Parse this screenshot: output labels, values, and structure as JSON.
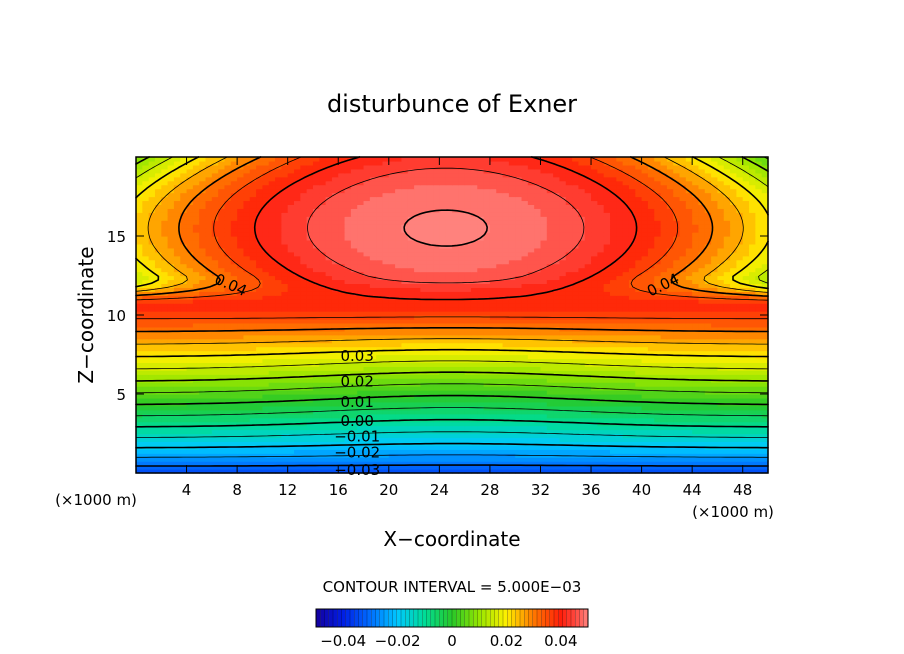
{
  "chart_data": {
    "type": "heatmap",
    "subtype": "filled-contour",
    "title": "disturbunce of Exner",
    "xlabel": "X−coordinate",
    "ylabel": "Z−coordinate",
    "xunit": "(×1000 m)",
    "yunit": "(×1000 m)",
    "xlim": [
      0,
      50
    ],
    "ylim": [
      0,
      20
    ],
    "xticks": [
      4,
      8,
      12,
      16,
      20,
      24,
      28,
      32,
      36,
      40,
      44,
      48
    ],
    "yticks": [
      5,
      10,
      15
    ],
    "grid": false,
    "contour_interval_text": "CONTOUR INTERVAL = 5.000E−03",
    "contour_labels": [
      {
        "text": "0.04",
        "x": 7.5,
        "y": 11.9,
        "rot": 24
      },
      {
        "text": "0.04",
        "x": 41.7,
        "y": 11.9,
        "rot": -26
      },
      {
        "text": "0.03",
        "x": 17.5,
        "y": 7.4,
        "rot": 0
      },
      {
        "text": "0.02",
        "x": 17.5,
        "y": 5.8,
        "rot": 0
      },
      {
        "text": "0.01",
        "x": 17.5,
        "y": 4.5,
        "rot": 0
      },
      {
        "text": "0.00",
        "x": 17.5,
        "y": 3.3,
        "rot": 0
      },
      {
        "text": "−0.01",
        "x": 17.5,
        "y": 2.3,
        "rot": 0
      },
      {
        "text": "−0.02",
        "x": 17.5,
        "y": 1.3,
        "rot": 0
      },
      {
        "text": "−0.03",
        "x": 17.5,
        "y": 0.2,
        "rot": 0
      }
    ],
    "colorbar": {
      "range": [
        -0.05,
        0.05
      ],
      "ticks": [
        -0.04,
        -0.02,
        0,
        0.02,
        0.04
      ],
      "tick_labels": [
        "−0.04",
        "−0.02",
        "0",
        "0.02",
        "0.04"
      ]
    }
  }
}
